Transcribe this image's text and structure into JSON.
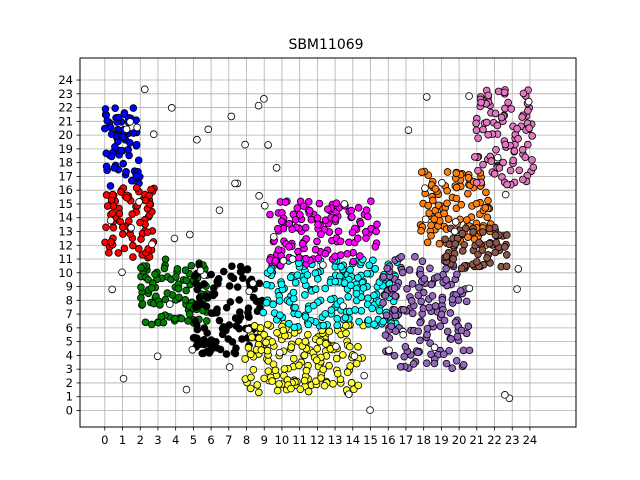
{
  "chart_data": {
    "type": "scatter",
    "title": "SBM11069",
    "xlabel": "",
    "ylabel": "",
    "xlim": [
      -1.4,
      26.6
    ],
    "ylim": [
      -1.2,
      25.6
    ],
    "xticks": [
      0,
      1,
      2,
      3,
      4,
      5,
      6,
      7,
      8,
      9,
      10,
      11,
      12,
      13,
      14,
      15,
      16,
      17,
      18,
      19,
      20,
      21,
      22,
      23,
      24
    ],
    "yticks": [
      0,
      1,
      2,
      3,
      4,
      5,
      6,
      7,
      8,
      9,
      10,
      11,
      12,
      13,
      14,
      15,
      16,
      17,
      18,
      19,
      20,
      21,
      22,
      23,
      24
    ],
    "grid": true,
    "legend": "none",
    "marker": "circle, black edge",
    "series": [
      {
        "color": "#0000ff",
        "xrange": [
          0.0,
          2.0
        ],
        "yrange": [
          16.3,
          22.0
        ],
        "count": 70
      },
      {
        "color": "#ff0000",
        "xrange": [
          0.0,
          2.8
        ],
        "yrange": [
          11.0,
          16.2
        ],
        "count": 80
      },
      {
        "color": "#008000",
        "xrange": [
          2.0,
          5.8
        ],
        "yrange": [
          6.2,
          11.0
        ],
        "count": 100
      },
      {
        "color": "#000000",
        "xrange": [
          5.0,
          8.9
        ],
        "yrange": [
          4.0,
          10.6
        ],
        "count": 110
      },
      {
        "color": "#ffff33",
        "xrange": [
          7.8,
          14.6
        ],
        "yrange": [
          1.3,
          6.3
        ],
        "count": 170
      },
      {
        "color": "#00ffff",
        "xrange": [
          8.9,
          16.5
        ],
        "yrange": [
          6.0,
          11.0
        ],
        "count": 190
      },
      {
        "color": "#ff00ff",
        "xrange": [
          9.3,
          15.4
        ],
        "yrange": [
          10.5,
          15.2
        ],
        "count": 130
      },
      {
        "color": "#9467bd",
        "xrange": [
          15.6,
          20.6
        ],
        "yrange": [
          3.0,
          11.2
        ],
        "count": 160
      },
      {
        "color": "#ff7f0e",
        "xrange": [
          17.8,
          21.8
        ],
        "yrange": [
          11.8,
          17.5
        ],
        "count": 110
      },
      {
        "color": "#8c564b",
        "xrange": [
          19.2,
          22.7
        ],
        "yrange": [
          10.3,
          13.3
        ],
        "count": 60
      },
      {
        "color": "#e377c2",
        "xrange": [
          20.8,
          24.2
        ],
        "yrange": [
          16.2,
          23.3
        ],
        "count": 100
      },
      {
        "color": "#ffffff",
        "xrange": [
          0.0,
          24.5
        ],
        "yrange": [
          0.0,
          24.0
        ],
        "count": 70
      }
    ]
  }
}
